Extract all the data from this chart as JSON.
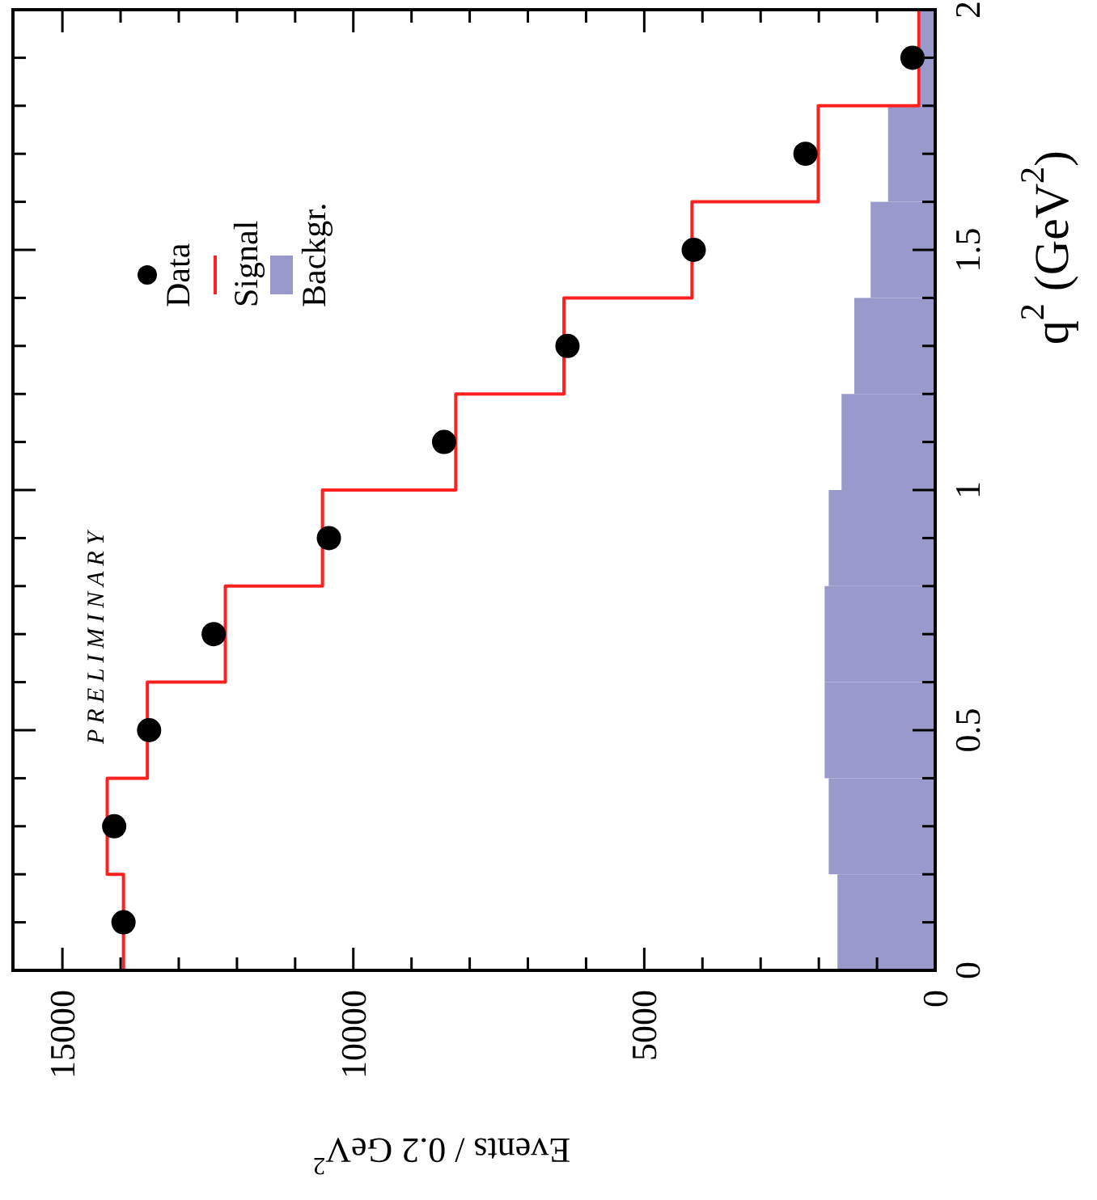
{
  "chart_data": {
    "type": "histogram",
    "orientation": "horizontal",
    "xlabel": "Events / 0.2 GeV$^{2}$",
    "ylabel": "q$^{2}$ (GeV$^{2}$)",
    "annotations": [
      "P R E L I M I N A R Y"
    ],
    "bins": [
      0,
      0.2,
      0.4,
      0.6,
      0.8,
      1.0,
      1.2,
      1.4,
      1.6,
      1.8,
      2.0
    ],
    "xlim": [
      15850,
      0
    ],
    "xticks": [
      15000,
      {
        "value": 14000,
        "label": null
      },
      {
        "value": 13000,
        "label": null
      },
      {
        "value": 12000,
        "label": null
      },
      {
        "value": 11000,
        "label": null
      },
      10000,
      {
        "value": 9000,
        "label": null
      },
      {
        "value": 8000,
        "label": null
      },
      {
        "value": 7000,
        "label": null
      },
      {
        "value": 6000,
        "label": null
      },
      5000,
      {
        "value": 4000,
        "label": null
      },
      {
        "value": 3000,
        "label": null
      },
      {
        "value": 2000,
        "label": null
      },
      {
        "value": 1000,
        "label": null
      },
      0
    ],
    "ylim": [
      0,
      2
    ],
    "yticks": [
      0,
      {
        "value": 0.1,
        "label": null
      },
      {
        "value": 0.2,
        "label": null
      },
      {
        "value": 0.3,
        "label": null
      },
      {
        "value": 0.4,
        "label": null
      },
      0.5,
      {
        "value": 0.6,
        "label": null
      },
      {
        "value": 0.7,
        "label": null
      },
      {
        "value": 0.8,
        "label": null
      },
      {
        "value": 0.9,
        "label": null
      },
      1,
      {
        "value": 1.1,
        "label": null
      },
      {
        "value": 1.2,
        "label": null
      },
      {
        "value": 1.3,
        "label": null
      },
      {
        "value": 1.4,
        "label": null
      },
      1.5,
      {
        "value": 1.6,
        "label": null
      },
      {
        "value": 1.7,
        "label": null
      },
      {
        "value": 1.8,
        "label": null
      },
      {
        "value": 1.9,
        "label": null
      },
      2
    ],
    "legend": "top left",
    "grid": false,
    "series": [
      {
        "name": "Backgr.",
        "type": "histogram",
        "color": "#9999cc",
        "values": [
          1680,
          1830,
          1900,
          1900,
          1830,
          1610,
          1390,
          1110,
          810,
          250
        ]
      },
      {
        "name": "Signal",
        "type": "step",
        "color": "#ff2020",
        "x": [
          0,
          0.2,
          0.4,
          0.6,
          0.8,
          1.0,
          1.2,
          1.4,
          1.6,
          1.8,
          2.0
        ],
        "values": [
          13950,
          14230,
          13540,
          12200,
          10530,
          8240,
          6380,
          4180,
          2010,
          280,
          280
        ]
      },
      {
        "name": "Data",
        "type": "scatter",
        "color": "#000000",
        "marker": "circle",
        "x": [
          0.1,
          0.3,
          0.5,
          0.7,
          0.9,
          1.1,
          1.3,
          1.5,
          1.7,
          1.9
        ],
        "values": [
          13950,
          14110,
          13510,
          12400,
          10420,
          8440,
          6320,
          4150,
          2230,
          390
        ]
      }
    ]
  }
}
